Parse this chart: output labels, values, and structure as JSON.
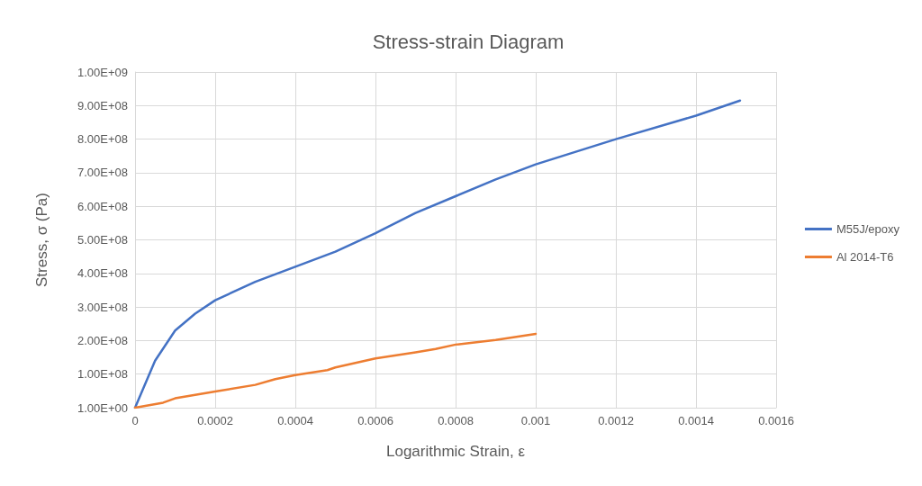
{
  "chart_data": {
    "type": "line",
    "title": "Stress-strain Diagram",
    "xlabel": "Logarithmic Strain, ε",
    "ylabel": "Stress, σ (Pa)",
    "series": [
      {
        "name": "M55J/epoxy",
        "color": "#4472c4",
        "x": [
          0,
          5e-05,
          0.0001,
          0.00015,
          0.0002,
          0.0003,
          0.0004,
          0.0005,
          0.0006,
          0.0007,
          0.0008,
          0.0009,
          0.001,
          0.0012,
          0.0014,
          0.00151
        ],
        "values": [
          1,
          140000000,
          230000000,
          280000000,
          320000000,
          375000000,
          420000000,
          465000000,
          520000000,
          580000000,
          630000000,
          680000000,
          725000000,
          800000000,
          870000000,
          915000000
        ]
      },
      {
        "name": "Al 2014-T6",
        "color": "#ed7d31",
        "x": [
          0,
          7e-05,
          0.0001,
          0.0002,
          0.0003,
          0.00035,
          0.0004,
          0.00048,
          0.0005,
          0.0006,
          0.0007,
          0.00075,
          0.0008,
          0.0009,
          0.001
        ],
        "values": [
          1,
          15000000,
          28000000,
          48000000,
          68000000,
          85000000,
          97000000,
          112000000,
          120000000,
          147000000,
          165000000,
          175000000,
          188000000,
          202000000,
          220000000
        ]
      }
    ],
    "xlim": [
      0,
      0.0016
    ],
    "xticks": [
      0,
      0.0002,
      0.0004,
      0.0006,
      0.0008,
      0.001,
      0.0012,
      0.0014,
      0.0016
    ],
    "ylim": [
      1,
      1000000000
    ],
    "yticks": [
      {
        "value": 1,
        "label": "1.00E+00"
      },
      {
        "value": 100000000,
        "label": "1.00E+08"
      },
      {
        "value": 200000000,
        "label": "2.00E+08"
      },
      {
        "value": 300000000,
        "label": "3.00E+08"
      },
      {
        "value": 400000000,
        "label": "4.00E+08"
      },
      {
        "value": 500000000,
        "label": "5.00E+08"
      },
      {
        "value": 600000000,
        "label": "6.00E+08"
      },
      {
        "value": 700000000,
        "label": "7.00E+08"
      },
      {
        "value": 800000000,
        "label": "8.00E+08"
      },
      {
        "value": 900000000,
        "label": "9.00E+08"
      },
      {
        "value": 1000000000,
        "label": "1.00E+09"
      }
    ],
    "grid": true,
    "legend": "right",
    "marker": "none",
    "line_style": "solid"
  }
}
